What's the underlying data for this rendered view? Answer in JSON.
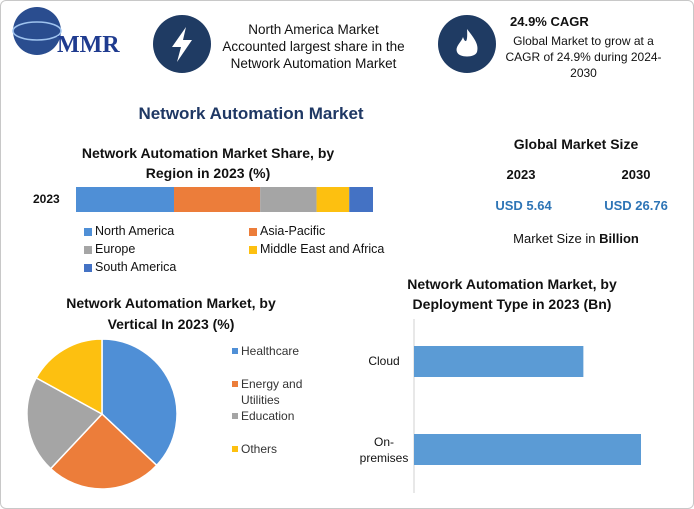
{
  "header": {
    "logo": "MMR",
    "highlight": "North America Market Accounted largest share in the Network Automation Market",
    "cagr_title": "24.9% CAGR",
    "cagr_text": "Global Market to grow at a CAGR of 24.9% during 2024-2030"
  },
  "title": "Network Automation Market",
  "market_size": {
    "title": "Global Market Size",
    "years": [
      "2023",
      "2030"
    ],
    "values": [
      "USD 5.64",
      "USD 26.76"
    ],
    "note": "Market Size in",
    "note_unit": "Billion"
  },
  "chart_data": [
    {
      "type": "stacked_bar",
      "title": "Network Automation Market Share, by Region in 2023 (%)",
      "categories": [
        "2023"
      ],
      "series": [
        {
          "name": "North America",
          "color": "#4f8fd6",
          "values": [
            33
          ]
        },
        {
          "name": "Asia-Pacific",
          "color": "#ec7d3a",
          "values": [
            29
          ]
        },
        {
          "name": "Europe",
          "color": "#a5a5a5",
          "values": [
            19
          ]
        },
        {
          "name": "Middle East and Africa",
          "color": "#fdc010",
          "values": [
            11
          ]
        },
        {
          "name": "South America",
          "color": "#4472c4",
          "values": [
            8
          ]
        }
      ]
    },
    {
      "type": "pie",
      "title": "Network Automation Market, by Vertical In 2023 (%)",
      "categories": [
        "Healthcare",
        "Energy and Utilities",
        "Education",
        "Others"
      ],
      "values": [
        37,
        25,
        21,
        17
      ],
      "colors": [
        "#4f8fd6",
        "#ec7d3a",
        "#a5a5a5",
        "#fdc010"
      ]
    },
    {
      "type": "bar",
      "title": "Network Automation Market, by Deployment Type in 2023 (Bn)",
      "categories": [
        "Cloud",
        "On-premises"
      ],
      "values": [
        2.41,
        3.23
      ],
      "color": "#5b9bd5"
    }
  ]
}
